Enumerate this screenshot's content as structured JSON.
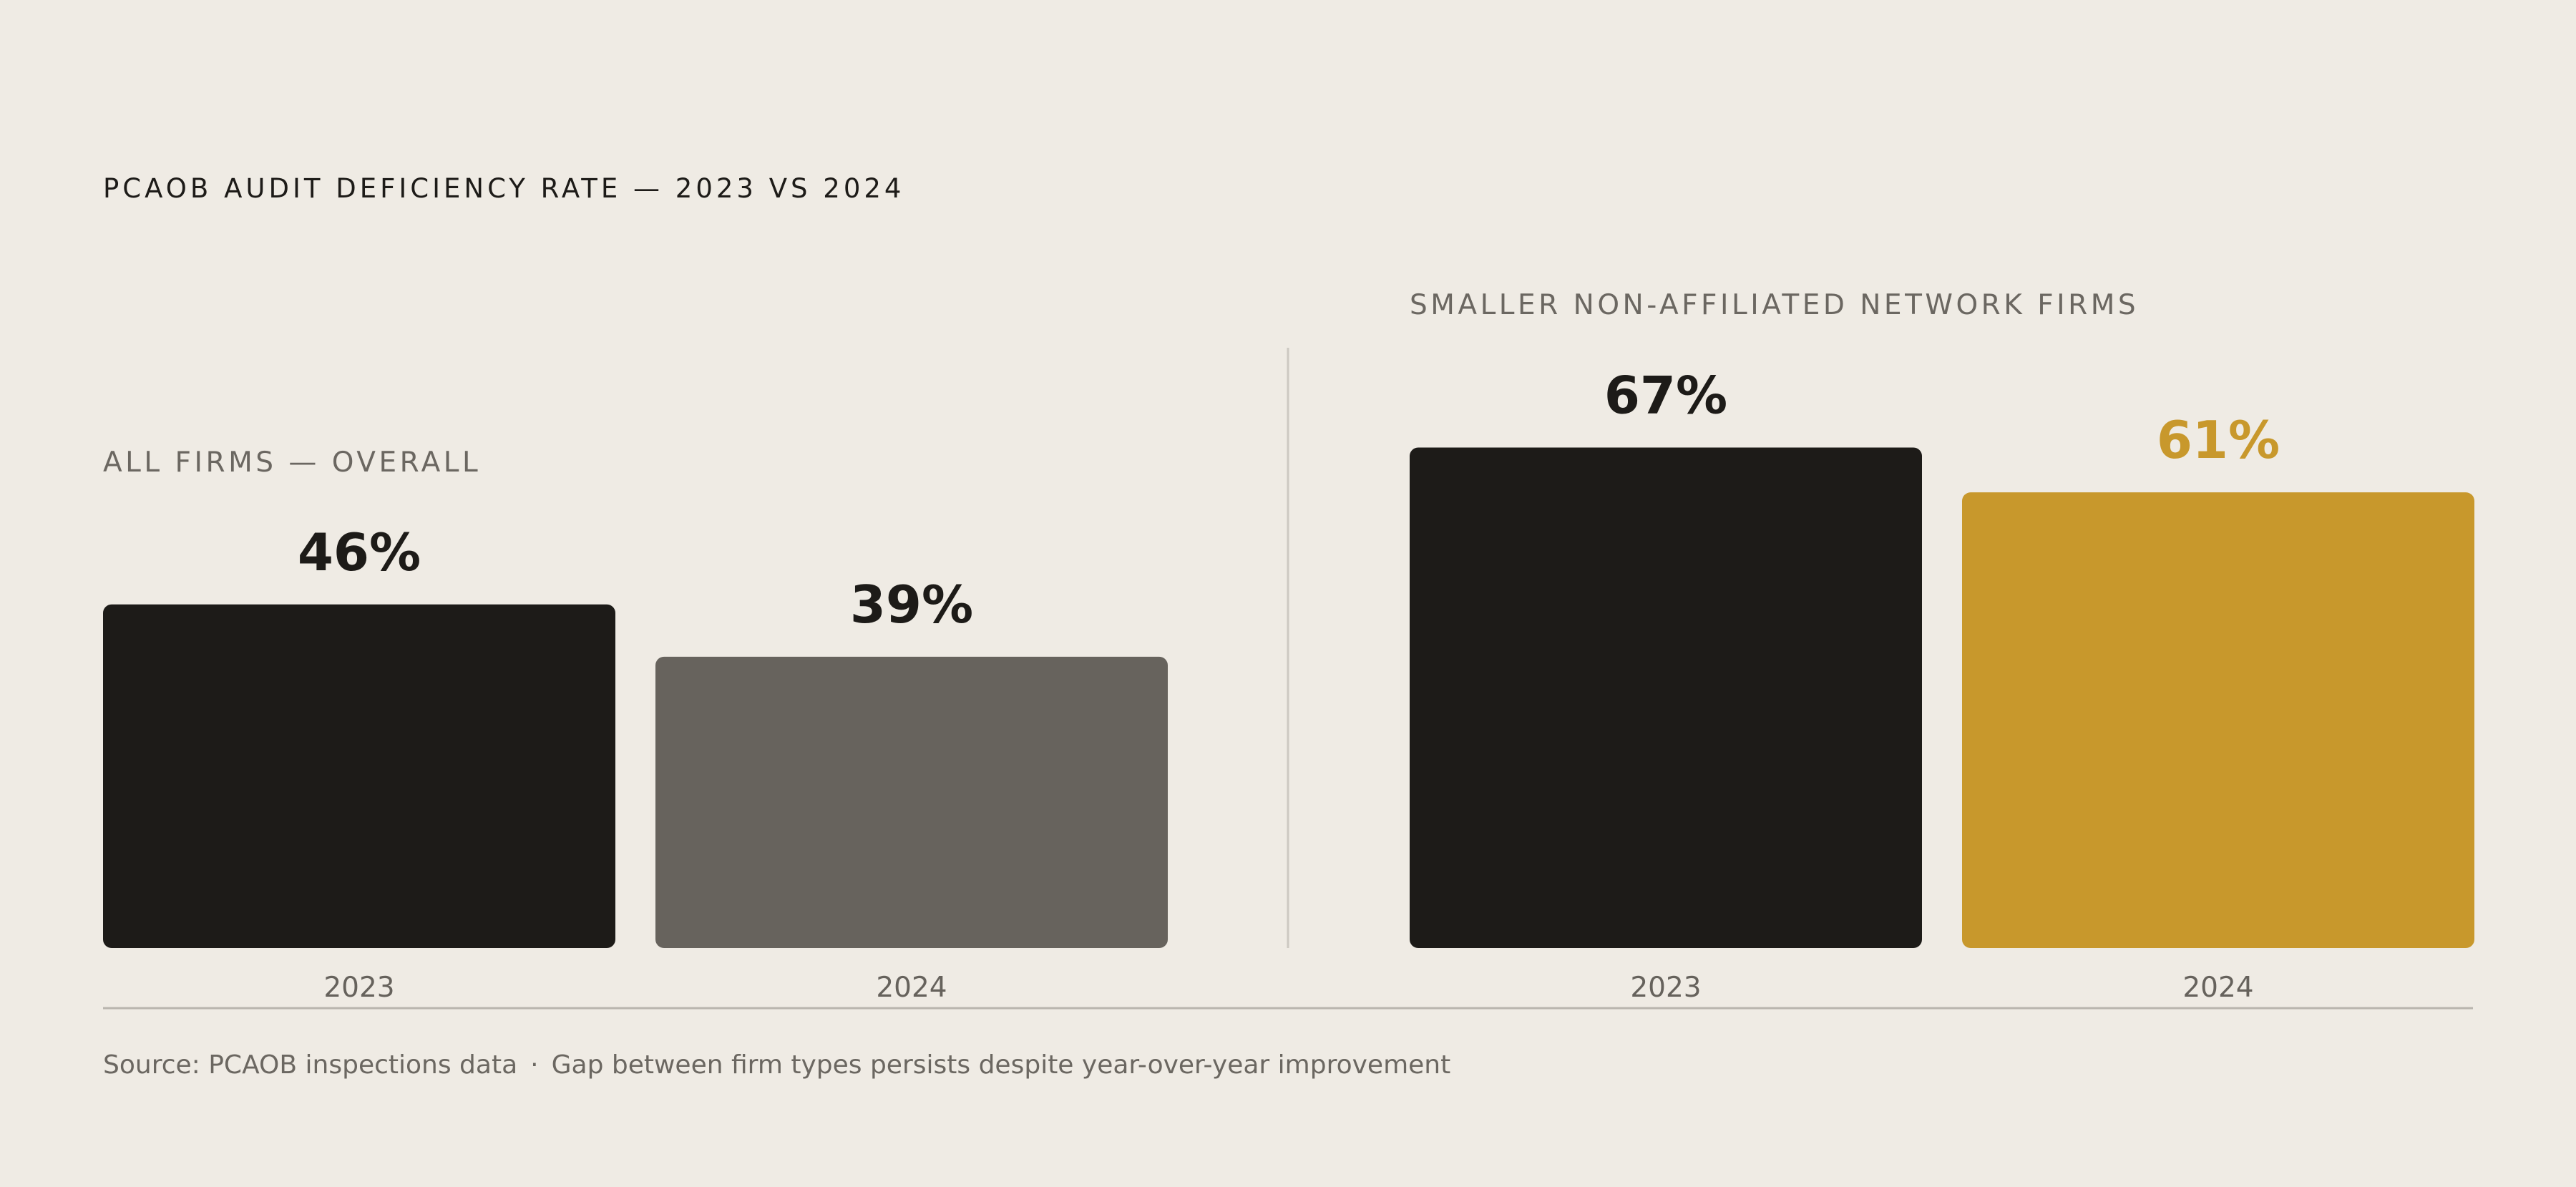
{
  "chart_data": {
    "type": "bar",
    "title": "PCAOB AUDIT DEFICIENCY RATE — 2023 VS 2024",
    "unit": "%",
    "ylim": [
      0,
      70
    ],
    "grid": false,
    "legend": "none",
    "groups": [
      {
        "label": "ALL FIRMS — OVERALL",
        "categories": [
          "2023",
          "2024"
        ],
        "values": [
          46,
          39
        ],
        "value_labels": [
          "46%",
          "39%"
        ],
        "bar_colors": [
          "#1d1b18",
          "#67635d"
        ],
        "value_label_colors": [
          "#1d1b18",
          "#1d1b18"
        ]
      },
      {
        "label": "SMALLER NON-AFFILIATED NETWORK FIRMS",
        "categories": [
          "2023",
          "2024"
        ],
        "values": [
          67,
          61
        ],
        "value_labels": [
          "67%",
          "61%"
        ],
        "bar_colors": [
          "#1d1b18",
          "#c8982c"
        ],
        "value_label_colors": [
          "#1d1b18",
          "#c8982c"
        ]
      }
    ]
  },
  "footer": {
    "source": "Source: PCAOB inspections data",
    "separator": "·",
    "note": "Gap between firm types persists despite year-over-year improvement"
  }
}
